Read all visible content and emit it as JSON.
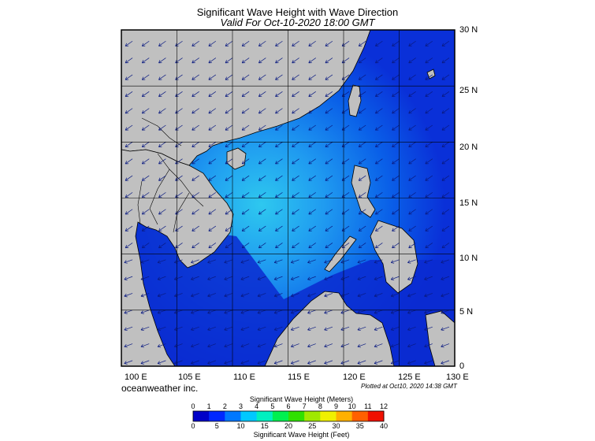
{
  "title": "Significant Wave Height with Wave Direction",
  "subtitle": "Valid For Oct-10-2020 18:00 GMT",
  "map": {
    "lon_range": [
      100,
      130
    ],
    "lat_range": [
      0,
      30
    ],
    "lon_labels": [
      "100 E",
      "105 E",
      "110 E",
      "115 E",
      "120 E",
      "125 E",
      "130 E"
    ],
    "lat_labels": [
      "30 N",
      "25 N",
      "20 N",
      "15 N",
      "10 N",
      "5 N",
      "0"
    ],
    "land_color": "#c0c0c0",
    "sea_color_low": "#0a1fd0",
    "sea_color_high": "#30d8f0",
    "grid": true
  },
  "credit": "oceanweather inc.",
  "plotted": "Plotted at Oct10, 2020 14:38 GMT",
  "colorbar": {
    "title_top": "Significant Wave Height (Meters)",
    "title_bottom": "Significant Wave Height (Feet)",
    "meters_ticks": [
      "0",
      "1",
      "2",
      "3",
      "4",
      "5",
      "6",
      "7",
      "8",
      "9",
      "10",
      "11",
      "12"
    ],
    "feet_ticks": [
      "0",
      "5",
      "10",
      "15",
      "20",
      "25",
      "30",
      "35",
      "40"
    ],
    "colors": [
      "#0000c8",
      "#0028ff",
      "#0078ff",
      "#00c8ff",
      "#00f0c0",
      "#00f050",
      "#30e000",
      "#a0e800",
      "#f0f000",
      "#ffb000",
      "#ff6000",
      "#f01000"
    ]
  }
}
